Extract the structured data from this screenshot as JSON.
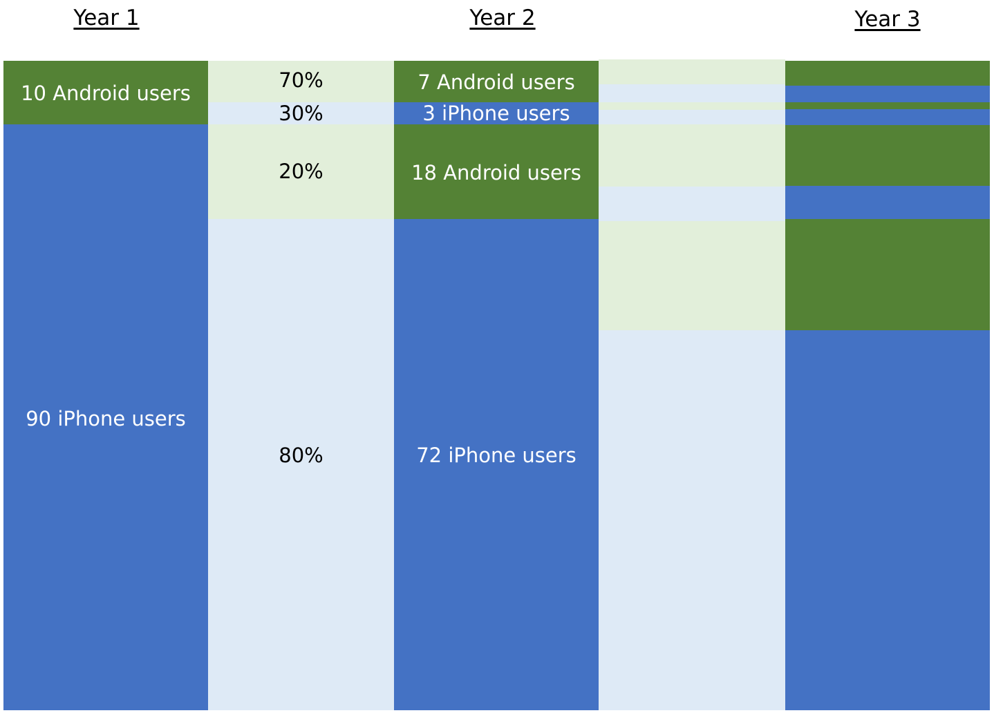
{
  "headers": {
    "year1": "Year 1",
    "year2": "Year 2",
    "year3": "Year 3"
  },
  "colors": {
    "android": "#548235",
    "iphone": "#4472C4",
    "android_flow": "#E2EFDA",
    "iphone_flow": "#DEEAF6"
  },
  "year1": {
    "android_label": "10 Android users",
    "iphone_label": "90 iPhone users"
  },
  "transition1": {
    "android_stay": "70%",
    "android_switch": "30%",
    "iphone_switch": "20%",
    "iphone_stay": "80%"
  },
  "year2": {
    "android_stay_label": "7 Android users",
    "android_to_iphone_label": "3 iPhone users",
    "iphone_to_android_label": "18 Android users",
    "iphone_stay_label": "72 iPhone users"
  }
}
